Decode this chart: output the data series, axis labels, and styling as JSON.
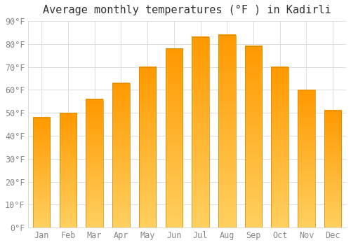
{
  "title": "Average monthly temperatures (°F ) in Kadirli",
  "months": [
    "Jan",
    "Feb",
    "Mar",
    "Apr",
    "May",
    "Jun",
    "Jul",
    "Aug",
    "Sep",
    "Oct",
    "Nov",
    "Dec"
  ],
  "values": [
    48,
    50,
    56,
    63,
    70,
    78,
    83,
    84,
    79,
    70,
    60,
    51
  ],
  "bar_color": "#FFA520",
  "bar_edge_color": "#CC8800",
  "ylim": [
    0,
    90
  ],
  "yticks": [
    0,
    10,
    20,
    30,
    40,
    50,
    60,
    70,
    80,
    90
  ],
  "ytick_labels": [
    "0°F",
    "10°F",
    "20°F",
    "30°F",
    "40°F",
    "50°F",
    "60°F",
    "70°F",
    "80°F",
    "90°F"
  ],
  "background_color": "#FFFFFF",
  "grid_color": "#DDDDDD",
  "title_fontsize": 11,
  "tick_fontsize": 8.5,
  "bar_width": 0.65
}
